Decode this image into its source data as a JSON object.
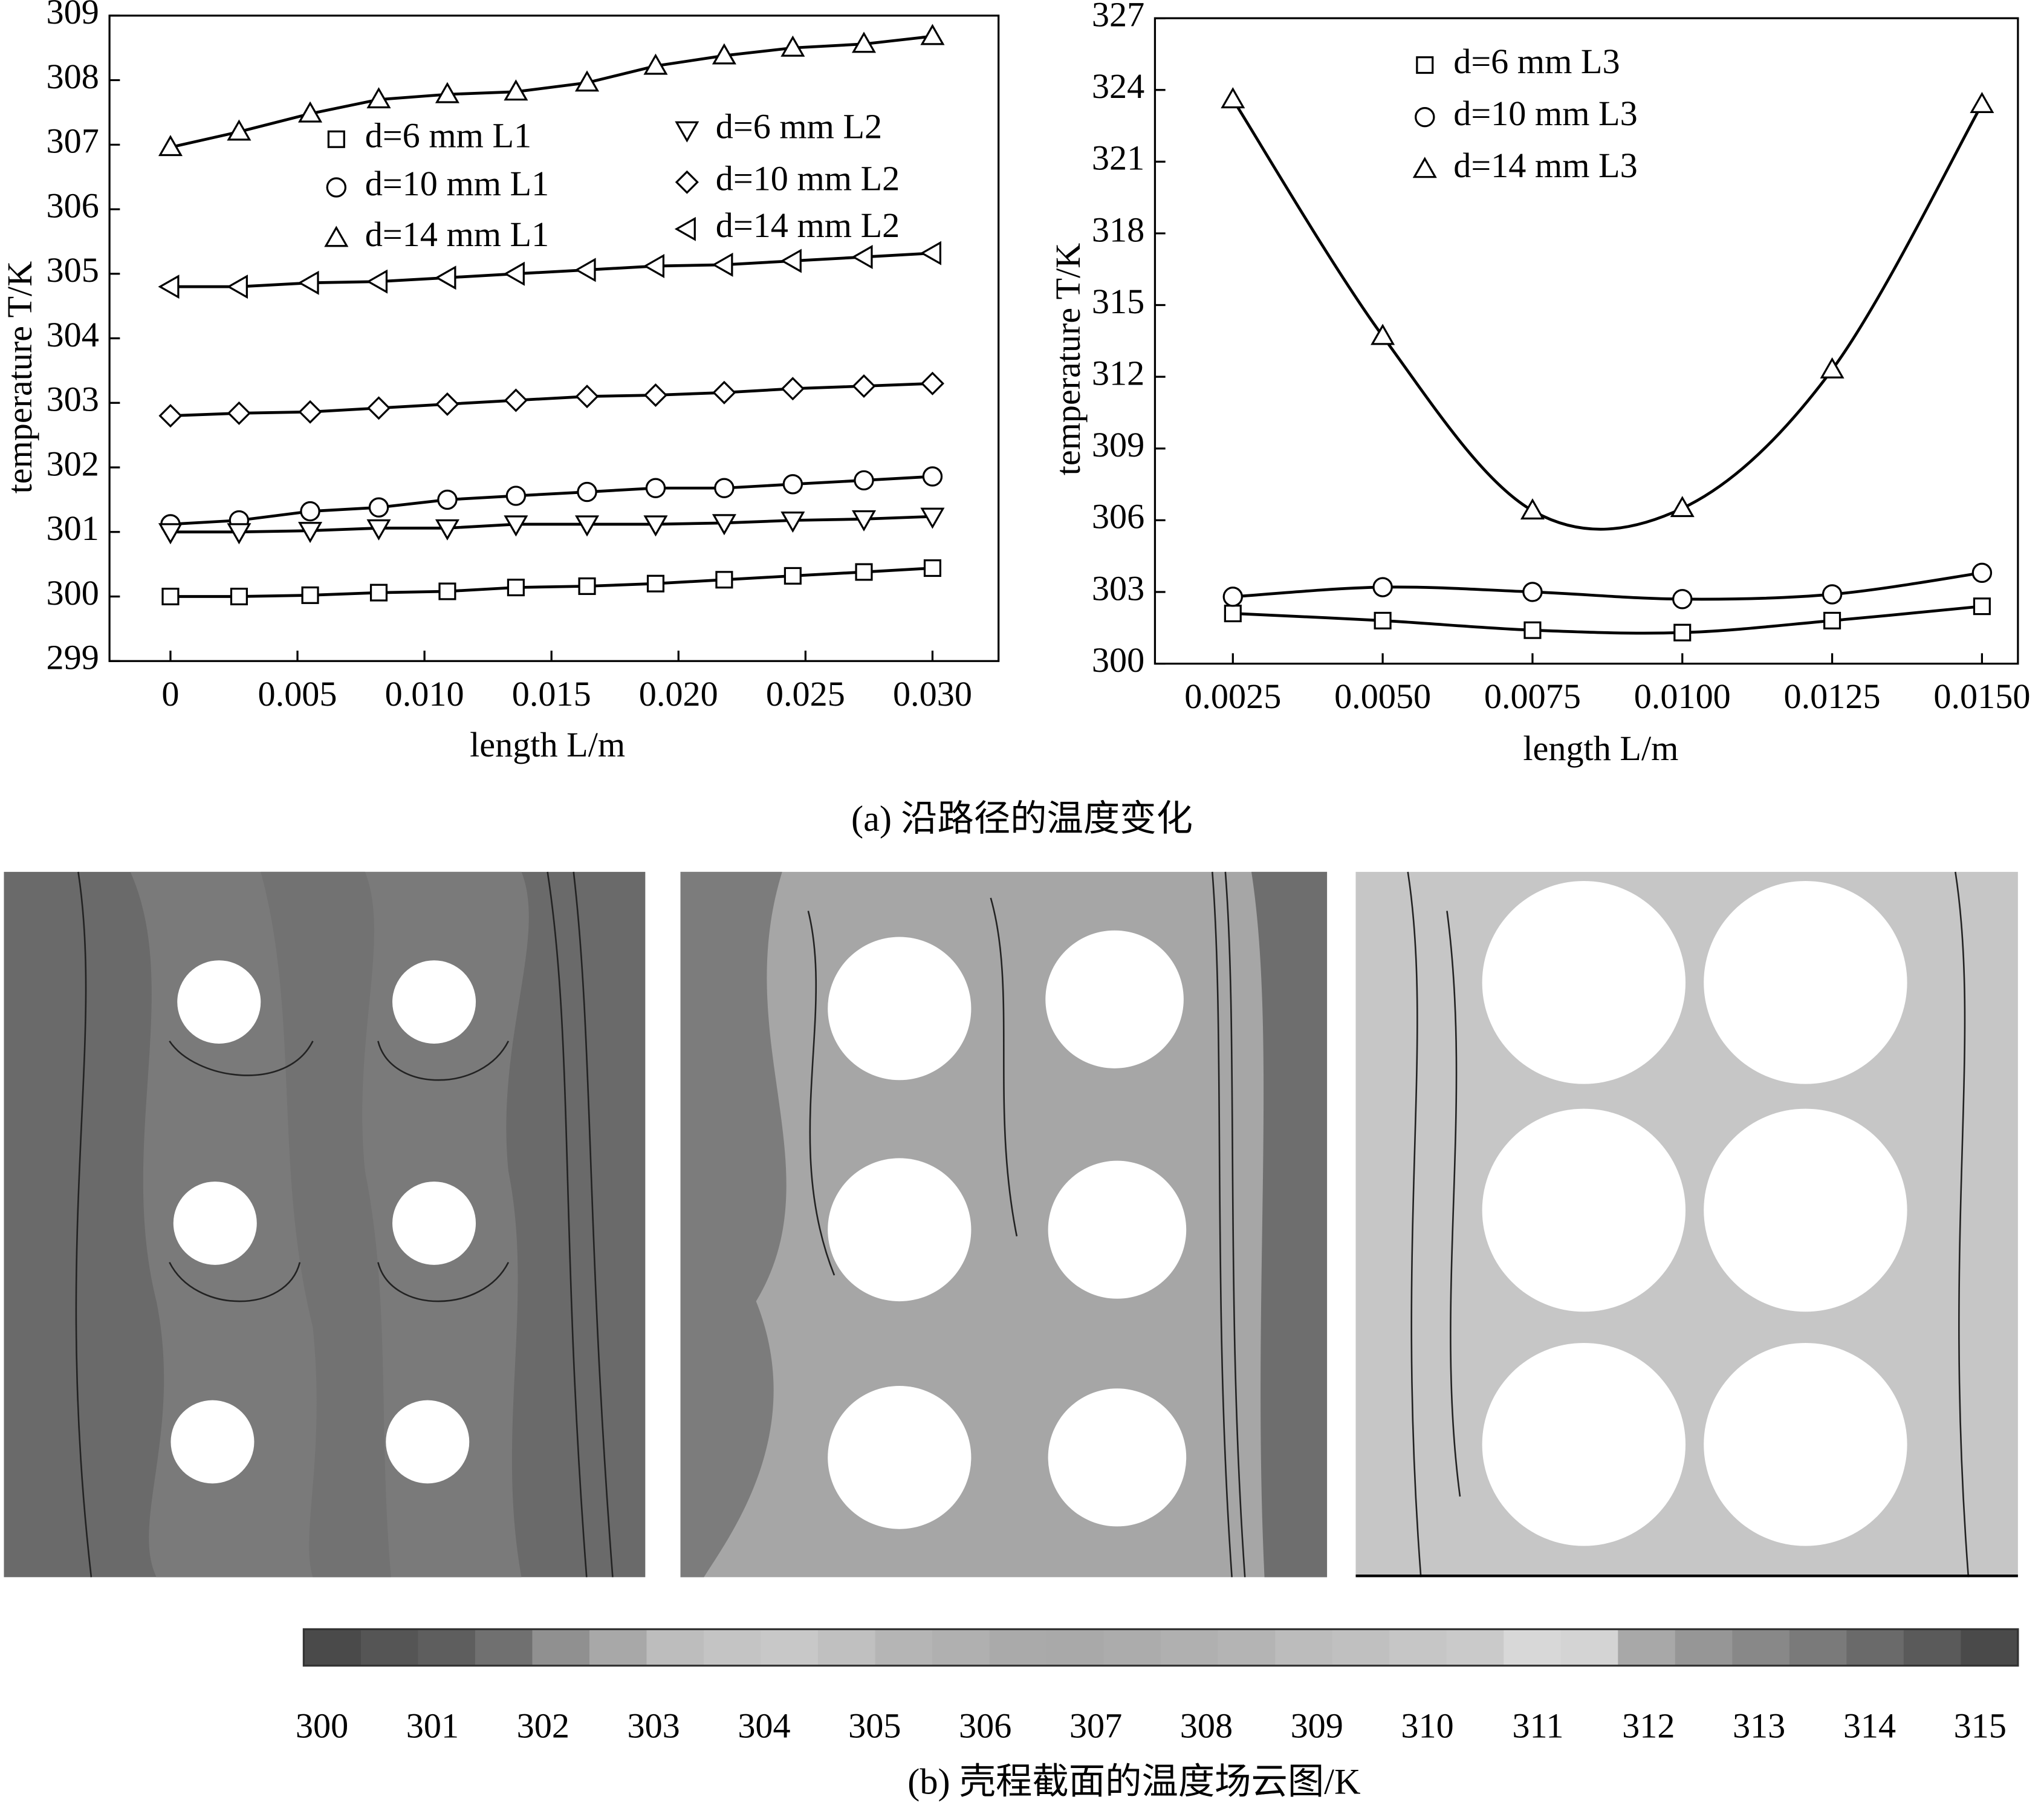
{
  "chart_data": [
    {
      "type": "line",
      "xlabel": "length  L/m",
      "ylabel": "temperature  T/K",
      "x": [
        0,
        0.0027,
        0.0055,
        0.0082,
        0.0109,
        0.0136,
        0.0164,
        0.0191,
        0.0218,
        0.0245,
        0.0273,
        0.03
      ],
      "series": [
        {
          "name": "d=6 mm    L1",
          "marker": "square",
          "color": "#000000",
          "values": [
            300.0,
            300.0,
            300.02,
            300.06,
            300.08,
            300.14,
            300.16,
            300.2,
            300.26,
            300.32,
            300.38,
            300.44
          ]
        },
        {
          "name": "d=10 mm  L1",
          "marker": "circle",
          "color": "#000000",
          "values": [
            301.12,
            301.18,
            301.32,
            301.38,
            301.5,
            301.56,
            301.62,
            301.68,
            301.68,
            301.74,
            301.8,
            301.86
          ]
        },
        {
          "name": "d=14 mm  L1",
          "marker": "triangle-up",
          "color": "#000000",
          "values": [
            306.96,
            307.2,
            307.48,
            307.7,
            307.78,
            307.82,
            307.96,
            308.22,
            308.38,
            308.5,
            308.56,
            308.68
          ]
        },
        {
          "name": "d=6  mm    L2",
          "marker": "triangle-down",
          "color": "#000000",
          "values": [
            301.0,
            301.0,
            301.02,
            301.06,
            301.06,
            301.12,
            301.12,
            301.12,
            301.14,
            301.18,
            301.2,
            301.24
          ]
        },
        {
          "name": "d=10 mm   L2",
          "marker": "diamond",
          "color": "#000000",
          "values": [
            302.8,
            302.84,
            302.86,
            302.92,
            302.98,
            303.04,
            303.1,
            303.12,
            303.16,
            303.22,
            303.26,
            303.3
          ]
        },
        {
          "name": "d=14 mm   L2",
          "marker": "triangle-left",
          "color": "#000000",
          "values": [
            304.8,
            304.8,
            304.86,
            304.88,
            304.94,
            305.0,
            305.06,
            305.12,
            305.14,
            305.2,
            305.26,
            305.32
          ]
        }
      ],
      "xlim": [
        -0.0024,
        0.0326
      ],
      "ylim": [
        299,
        309
      ],
      "xticks": [
        0,
        {
          "value": 0.005,
          "label": "0.005"
        },
        {
          "value": 0.01,
          "label": "0.010"
        },
        {
          "value": 0.015,
          "label": "0.015"
        },
        {
          "value": 0.02,
          "label": "0.020"
        },
        {
          "value": 0.025,
          "label": "0.025"
        },
        {
          "value": 0.03,
          "label": "0.030"
        }
      ],
      "yticks": [
        299,
        300,
        301,
        302,
        303,
        304,
        305,
        306,
        307,
        308,
        309
      ],
      "smooth": false
    },
    {
      "type": "line",
      "xlabel": "length  L/m",
      "ylabel": "temperature  T/K",
      "x": [
        0.0025,
        0.005,
        0.0075,
        0.01,
        0.0125,
        0.015
      ],
      "series": [
        {
          "name": "d=6 mm  L3",
          "marker": "square",
          "color": "#000000",
          "values": [
            302.1,
            301.8,
            301.4,
            301.3,
            301.8,
            302.4
          ]
        },
        {
          "name": "d=10 mm  L3",
          "marker": "circle",
          "color": "#000000",
          "values": [
            302.8,
            303.2,
            303.0,
            302.7,
            302.9,
            303.8
          ]
        },
        {
          "name": "d=14 mm  L3",
          "marker": "triangle-up",
          "color": "#000000",
          "values": [
            323.6,
            313.7,
            306.4,
            306.5,
            312.3,
            323.4
          ]
        }
      ],
      "xlim": [
        0.0012,
        0.0156
      ],
      "ylim": [
        300,
        327
      ],
      "xticks": [
        0.0025,
        {
          "value": 0.005,
          "label": "0.0050"
        },
        {
          "value": 0.0075,
          "label": "0.0075"
        },
        {
          "value": 0.01,
          "label": "0.0100"
        },
        {
          "value": 0.0125,
          "label": "0.0125"
        },
        {
          "value": 0.015,
          "label": "0.0150"
        }
      ],
      "yticks": [
        300,
        303,
        306,
        309,
        312,
        315,
        318,
        321,
        324,
        327
      ],
      "smooth": true
    }
  ],
  "captions": {
    "a": "(a) 沿路径的温度变化",
    "b": "(b) 壳程截面的温度场云图/K"
  },
  "colorbar": {
    "ticks": [
      300,
      301,
      302,
      303,
      304,
      305,
      306,
      307,
      308,
      309,
      310,
      311,
      312,
      313,
      314,
      315
    ],
    "colors": [
      "#4a4a4a",
      "#555555",
      "#5e5e5e",
      "#707070",
      "#909090",
      "#a8a8a8",
      "#bdbdbd",
      "#c4c4c4",
      "#c8c8c8",
      "#c0c0c0",
      "#b5b5b5",
      "#b0b0b0",
      "#aaaaaa",
      "#a9a9a9",
      "#acacac",
      "#b0b0b0",
      "#b4b4b4",
      "#bcbcbc",
      "#c0c0c0",
      "#c6c6c6",
      "#cacaca",
      "#d8d8d8",
      "#d4d4d4",
      "#a8a8a8",
      "#969696",
      "#888888",
      "#7a7a7a",
      "#6a6a6a",
      "#5a5a5a",
      "#4a4a4a"
    ]
  }
}
